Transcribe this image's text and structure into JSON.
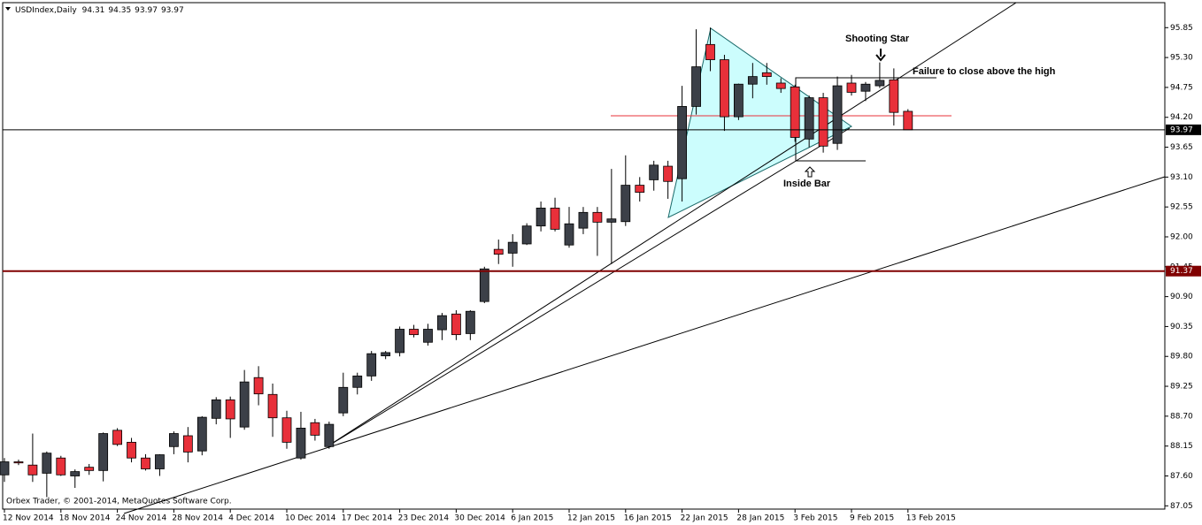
{
  "chart_data": {
    "type": "candlestick",
    "title": "USDIndex,Daily",
    "footer": "Orbex Trader, © 2001-2014, MetaQuotes Software Corp.",
    "annotations": [
      "Shooting Star",
      "Failure to close above the high",
      "Inside Bar"
    ],
    "categories": [
      "12 Nov 2014",
      null,
      null,
      null,
      "18 Nov 2014",
      null,
      null,
      null,
      "24 Nov 2014",
      null,
      null,
      null,
      "28 Nov 2014",
      null,
      null,
      null,
      "4 Dec 2014",
      null,
      null,
      null,
      "10 Dec 2014",
      null,
      null,
      null,
      "17 Dec 2014",
      null,
      null,
      null,
      "23 Dec 2014",
      null,
      null,
      null,
      "30 Dec 2014",
      null,
      null,
      null,
      "6 Jan 2015",
      null,
      null,
      null,
      "12 Jan 2015",
      null,
      null,
      null,
      "16 Jan 2015",
      null,
      null,
      null,
      "22 Jan 2015",
      null,
      null,
      null,
      "28 Jan 2015",
      null,
      null,
      null,
      "3 Feb 2015",
      null,
      null,
      null,
      "9 Feb 2015",
      null,
      null,
      null,
      "13 Feb 2015"
    ],
    "open": [
      87.62,
      87.86,
      87.8,
      87.65,
      87.93,
      87.6,
      87.76,
      87.7,
      88.44,
      88.22,
      87.93,
      87.73,
      88.14,
      88.34,
      88.06,
      88.66,
      89.0,
      88.5,
      89.41,
      89.1,
      88.67,
      87.93,
      88.58,
      88.14,
      88.76,
      89.23,
      89.44,
      89.81,
      89.87,
      90.3,
      90.06,
      90.29,
      90.58,
      90.22,
      90.81,
      91.77,
      91.7,
      91.87,
      92.2,
      92.53,
      91.85,
      92.16,
      92.45,
      92.27,
      92.28,
      92.95,
      93.05,
      93.3,
      93.07,
      94.4,
      95.54,
      95.26,
      94.21,
      94.81,
      95.02,
      94.83,
      94.76,
      93.8,
      94.56,
      93.72,
      94.83,
      94.68,
      94.78,
      94.89,
      94.31
    ],
    "high": [
      87.93,
      87.9,
      88.38,
      88.05,
      87.97,
      87.72,
      87.82,
      88.4,
      88.48,
      88.3,
      88.0,
      88.0,
      88.42,
      88.5,
      88.7,
      89.05,
      89.06,
      89.55,
      89.62,
      89.3,
      88.8,
      88.78,
      88.65,
      88.6,
      89.5,
      89.5,
      89.9,
      89.9,
      90.35,
      90.38,
      90.4,
      90.6,
      90.65,
      90.65,
      91.45,
      91.95,
      92.05,
      92.25,
      92.65,
      92.72,
      92.55,
      92.55,
      92.55,
      93.25,
      93.5,
      93.1,
      93.4,
      93.4,
      94.78,
      95.82,
      95.85,
      95.35,
      94.82,
      95.2,
      95.2,
      94.92,
      94.8,
      94.6,
      94.65,
      94.95,
      94.98,
      94.85,
      95.21,
      95.1,
      94.35
    ],
    "low": [
      87.49,
      87.8,
      87.49,
      87.21,
      87.6,
      87.38,
      87.62,
      87.5,
      88.15,
      87.85,
      87.7,
      87.6,
      88.0,
      87.85,
      87.98,
      88.55,
      88.3,
      88.45,
      88.9,
      88.32,
      88.1,
      87.9,
      88.25,
      88.1,
      88.7,
      89.1,
      89.35,
      89.75,
      89.8,
      90.15,
      90.0,
      90.1,
      90.1,
      90.1,
      90.78,
      91.5,
      91.45,
      91.85,
      92.1,
      92.1,
      91.8,
      92.05,
      91.65,
      91.5,
      92.2,
      92.65,
      92.85,
      92.7,
      92.65,
      94.25,
      95.05,
      93.95,
      94.15,
      94.55,
      94.8,
      94.65,
      93.75,
      93.65,
      93.55,
      93.6,
      94.6,
      94.5,
      94.74,
      94.05,
      93.97
    ],
    "close": [
      87.86,
      87.84,
      87.62,
      88.02,
      87.62,
      87.68,
      87.7,
      88.38,
      88.18,
      87.93,
      87.73,
      87.99,
      88.38,
      88.04,
      88.68,
      89.0,
      88.65,
      89.33,
      89.11,
      88.67,
      88.22,
      88.48,
      88.35,
      88.55,
      89.23,
      89.44,
      89.85,
      89.87,
      90.3,
      90.2,
      90.3,
      90.55,
      90.2,
      90.63,
      91.41,
      91.68,
      91.9,
      92.2,
      92.53,
      92.14,
      92.24,
      92.45,
      92.27,
      92.33,
      92.95,
      92.82,
      93.32,
      93.02,
      94.4,
      95.13,
      95.26,
      94.21,
      94.81,
      94.95,
      94.95,
      94.73,
      93.83,
      94.56,
      93.67,
      94.78,
      94.66,
      94.81,
      94.88,
      94.29,
      93.97
    ],
    "up_color": "#3c4048",
    "down_color": "#e8303a",
    "price_line_color": "#000000",
    "hlines": [
      {
        "value": 91.37,
        "color": "#800000"
      }
    ],
    "ylim": [
      86.99,
      96.31
    ],
    "yticks": [
      87.05,
      87.6,
      88.15,
      88.7,
      89.25,
      89.8,
      90.35,
      90.9,
      91.45,
      92.0,
      92.55,
      93.1,
      93.65,
      94.2,
      94.75,
      95.3,
      95.85
    ]
  }
}
